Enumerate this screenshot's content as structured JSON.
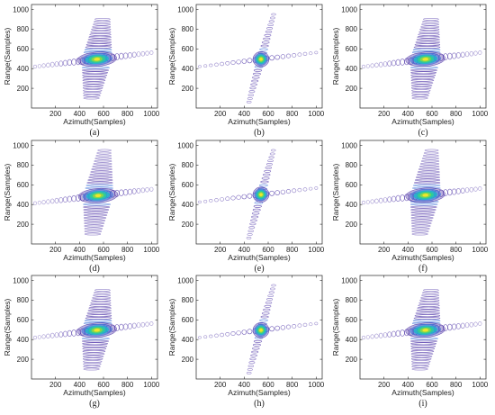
{
  "figure": {
    "colormap": [
      "#3b1f9e",
      "#3a6fd8",
      "#19b8c9",
      "#2fd08f",
      "#8ad64a",
      "#f0e62a"
    ]
  },
  "chart_data": [
    {
      "type": "contour",
      "caption": "(a)",
      "xlabel": "Azimuth(Samples)",
      "ylabel": "Range(Samples)",
      "xlim": [
        0,
        1050
      ],
      "ylim": [
        0,
        1050
      ],
      "xticks": [
        200,
        400,
        600,
        800,
        1000
      ],
      "yticks": [
        200,
        400,
        600,
        800,
        1000
      ],
      "grid": false,
      "peak": [
        545,
        495
      ],
      "spread": "wide",
      "range_sidelobe_extent": [
        100,
        900
      ],
      "azimuth_sidelobe_extent": [
        30,
        1000
      ]
    },
    {
      "type": "contour",
      "caption": "(b)",
      "xlabel": "Azimuth(Samples)",
      "ylabel": "Range(Samples)",
      "xlim": [
        0,
        1050
      ],
      "ylim": [
        0,
        1050
      ],
      "xticks": [
        200,
        400,
        600,
        800,
        1000
      ],
      "yticks": [
        200,
        400,
        600,
        800,
        1000
      ],
      "grid": false,
      "peak": [
        540,
        495
      ],
      "spread": "focused",
      "range_sidelobe_extent": [
        60,
        950
      ],
      "azimuth_sidelobe_extent": [
        30,
        1000
      ]
    },
    {
      "type": "contour",
      "caption": "(c)",
      "xlabel": "Azimuth(Samples)",
      "ylabel": "Range(Samples)",
      "xlim": [
        0,
        1050
      ],
      "ylim": [
        0,
        1050
      ],
      "xticks": [
        200,
        400,
        600,
        800,
        1000
      ],
      "yticks": [
        200,
        400,
        600,
        800,
        1000
      ],
      "grid": false,
      "peak": [
        545,
        495
      ],
      "spread": "wide",
      "range_sidelobe_extent": [
        100,
        900
      ],
      "azimuth_sidelobe_extent": [
        30,
        1000
      ]
    },
    {
      "type": "contour",
      "caption": "(d)",
      "xlabel": "Azimuth(Samples)",
      "ylabel": "Range(Samples)",
      "xlim": [
        0,
        1050
      ],
      "ylim": [
        0,
        1050
      ],
      "xticks": [
        200,
        400,
        600,
        800,
        1000
      ],
      "yticks": [
        200,
        400,
        600,
        800,
        1000
      ],
      "grid": false,
      "peak": [
        555,
        490
      ],
      "spread": "wide",
      "range_sidelobe_extent": [
        100,
        950
      ],
      "azimuth_sidelobe_extent": [
        30,
        1000
      ]
    },
    {
      "type": "contour",
      "caption": "(e)",
      "xlabel": "Azimuth(Samples)",
      "ylabel": "Range(Samples)",
      "xlim": [
        0,
        1050
      ],
      "ylim": [
        0,
        1050
      ],
      "xticks": [
        200,
        400,
        600,
        800,
        1000
      ],
      "yticks": [
        200,
        400,
        600,
        800,
        1000
      ],
      "grid": false,
      "peak": [
        540,
        500
      ],
      "spread": "focused",
      "range_sidelobe_extent": [
        60,
        950
      ],
      "azimuth_sidelobe_extent": [
        30,
        1000
      ]
    },
    {
      "type": "contour",
      "caption": "(f)",
      "xlabel": "Azimuth(Samples)",
      "ylabel": "Range(Samples)",
      "xlim": [
        0,
        1050
      ],
      "ylim": [
        0,
        1050
      ],
      "xticks": [
        200,
        400,
        600,
        800,
        1000
      ],
      "yticks": [
        200,
        400,
        600,
        800,
        1000
      ],
      "grid": false,
      "peak": [
        545,
        495
      ],
      "spread": "wide",
      "range_sidelobe_extent": [
        100,
        950
      ],
      "azimuth_sidelobe_extent": [
        30,
        1000
      ]
    },
    {
      "type": "contour",
      "caption": "(g)",
      "xlabel": "Azimuth(Samples)",
      "ylabel": "Range(Samples)",
      "xlim": [
        0,
        1050
      ],
      "ylim": [
        0,
        1050
      ],
      "xticks": [
        200,
        400,
        600,
        800,
        1000
      ],
      "yticks": [
        200,
        400,
        600,
        800,
        1000
      ],
      "grid": false,
      "peak": [
        545,
        495
      ],
      "spread": "wide",
      "range_sidelobe_extent": [
        100,
        900
      ],
      "azimuth_sidelobe_extent": [
        30,
        1000
      ]
    },
    {
      "type": "contour",
      "caption": "(h)",
      "xlabel": "Azimuth(Samples)",
      "ylabel": "Range(Samples)",
      "xlim": [
        0,
        1050
      ],
      "ylim": [
        0,
        1050
      ],
      "xticks": [
        200,
        400,
        600,
        800,
        1000
      ],
      "yticks": [
        200,
        400,
        600,
        800,
        1000
      ],
      "grid": false,
      "peak": [
        540,
        495
      ],
      "spread": "focused",
      "range_sidelobe_extent": [
        60,
        950
      ],
      "azimuth_sidelobe_extent": [
        30,
        1000
      ]
    },
    {
      "type": "contour",
      "caption": "(i)",
      "xlabel": "Azimuth(Samples)",
      "ylabel": "Range(Samples)",
      "xlim": [
        0,
        1050
      ],
      "ylim": [
        0,
        1050
      ],
      "xticks": [
        200,
        400,
        600,
        800,
        1000
      ],
      "yticks": [
        200,
        400,
        600,
        800,
        1000
      ],
      "grid": false,
      "peak": [
        545,
        495
      ],
      "spread": "wide",
      "range_sidelobe_extent": [
        100,
        900
      ],
      "azimuth_sidelobe_extent": [
        30,
        1000
      ]
    }
  ]
}
